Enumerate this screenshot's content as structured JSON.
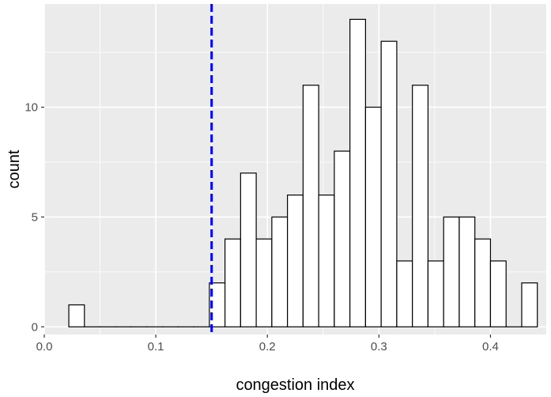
{
  "chart_data": {
    "type": "bar",
    "subtype": "histogram",
    "xlabel": "congestion index",
    "ylabel": "count",
    "xlim": [
      0.0,
      0.45
    ],
    "ylim": [
      -0.35,
      14.7
    ],
    "x_ticks": [
      {
        "value": 0.0,
        "label": "0.0"
      },
      {
        "value": 0.1,
        "label": "0.1"
      },
      {
        "value": 0.2,
        "label": "0.2"
      },
      {
        "value": 0.3,
        "label": "0.3"
      },
      {
        "value": 0.4,
        "label": "0.4"
      }
    ],
    "y_ticks": [
      {
        "value": 0,
        "label": "0"
      },
      {
        "value": 5,
        "label": "5"
      },
      {
        "value": 10,
        "label": "10"
      }
    ],
    "bin_width": 0.014,
    "bins": [
      {
        "start": 0.022,
        "count": 1
      },
      {
        "start": 0.036,
        "count": 0
      },
      {
        "start": 0.05,
        "count": 0
      },
      {
        "start": 0.064,
        "count": 0
      },
      {
        "start": 0.078,
        "count": 0
      },
      {
        "start": 0.092,
        "count": 0
      },
      {
        "start": 0.106,
        "count": 0
      },
      {
        "start": 0.12,
        "count": 0
      },
      {
        "start": 0.134,
        "count": 0
      },
      {
        "start": 0.148,
        "count": 2
      },
      {
        "start": 0.162,
        "count": 4
      },
      {
        "start": 0.176,
        "count": 7
      },
      {
        "start": 0.19,
        "count": 4
      },
      {
        "start": 0.204,
        "count": 5
      },
      {
        "start": 0.218,
        "count": 6
      },
      {
        "start": 0.232,
        "count": 11
      },
      {
        "start": 0.246,
        "count": 6
      },
      {
        "start": 0.26,
        "count": 8
      },
      {
        "start": 0.274,
        "count": 14
      },
      {
        "start": 0.288,
        "count": 10
      },
      {
        "start": 0.302,
        "count": 13
      },
      {
        "start": 0.316,
        "count": 3
      },
      {
        "start": 0.33,
        "count": 11
      },
      {
        "start": 0.344,
        "count": 3
      },
      {
        "start": 0.358,
        "count": 5
      },
      {
        "start": 0.372,
        "count": 5
      },
      {
        "start": 0.386,
        "count": 4
      },
      {
        "start": 0.4,
        "count": 3
      },
      {
        "start": 0.414,
        "count": 0
      },
      {
        "start": 0.428,
        "count": 2
      }
    ],
    "vline": {
      "x": 0.15,
      "color": "#0000ff",
      "style": "dashed"
    },
    "colors": {
      "panel_background": "#ebebeb",
      "grid_major": "#ffffff",
      "bar_fill": "#ffffff",
      "bar_outline": "#000000",
      "tick_text": "#4d4d4d",
      "title_text": "#000000"
    },
    "grid": true,
    "legend": "none"
  }
}
